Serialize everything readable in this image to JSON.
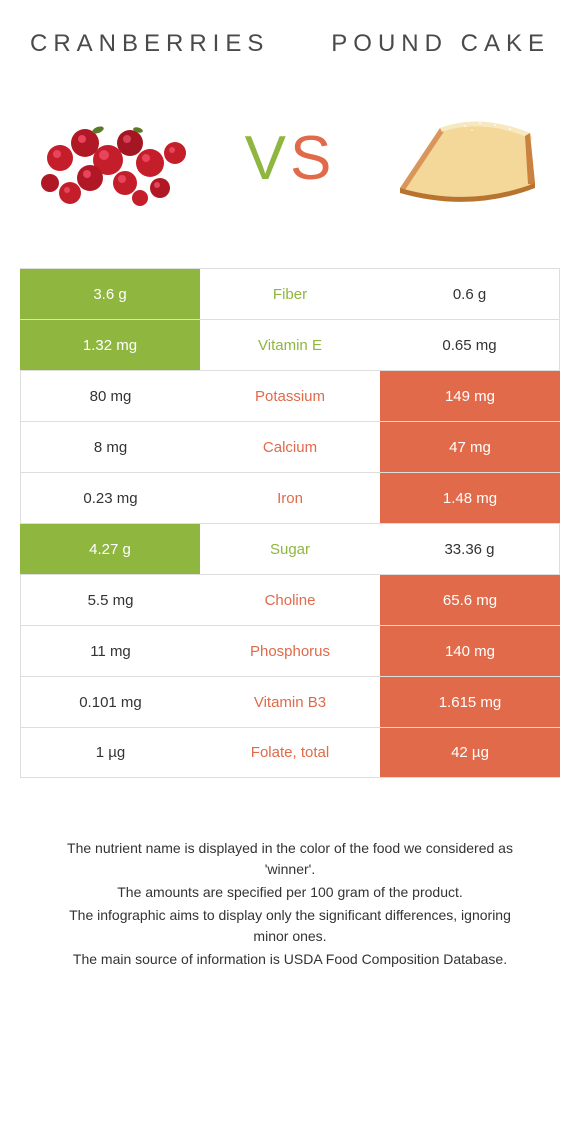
{
  "titles": {
    "left": "CRANBERRIES",
    "right": "POUND CAKE"
  },
  "vs": {
    "v": "V",
    "s": "S"
  },
  "colors": {
    "green": "#8fb63f",
    "orange": "#e06a4a",
    "text": "#333333",
    "border": "#dddddd",
    "bg": "#ffffff"
  },
  "images": {
    "cranberry_fill": "#c41e2a",
    "cranberry_highlight": "#e8455c",
    "cake_crust": "#d9955a",
    "cake_inside": "#f3d89a",
    "cake_top": "#f7e9bf"
  },
  "rows": [
    {
      "left": "3.6 g",
      "mid": "Fiber",
      "right": "0.6 g",
      "winner": "left"
    },
    {
      "left": "1.32 mg",
      "mid": "Vitamin E",
      "right": "0.65 mg",
      "winner": "left"
    },
    {
      "left": "80 mg",
      "mid": "Potassium",
      "right": "149 mg",
      "winner": "right"
    },
    {
      "left": "8 mg",
      "mid": "Calcium",
      "right": "47 mg",
      "winner": "right"
    },
    {
      "left": "0.23 mg",
      "mid": "Iron",
      "right": "1.48 mg",
      "winner": "right"
    },
    {
      "left": "4.27 g",
      "mid": "Sugar",
      "right": "33.36 g",
      "winner": "left"
    },
    {
      "left": "5.5 mg",
      "mid": "Choline",
      "right": "65.6 mg",
      "winner": "right"
    },
    {
      "left": "11 mg",
      "mid": "Phosphorus",
      "right": "140 mg",
      "winner": "right"
    },
    {
      "left": "0.101 mg",
      "mid": "Vitamin B3",
      "right": "1.615 mg",
      "winner": "right"
    },
    {
      "left": "1 µg",
      "mid": "Folate, total",
      "right": "42 µg",
      "winner": "right"
    }
  ],
  "footer": [
    "The nutrient name is displayed in the color of the food we considered as 'winner'.",
    "The amounts are specified per 100 gram of the product.",
    "The infographic aims to display only the significant differences, ignoring minor ones.",
    "The main source of information is USDA Food Composition Database."
  ]
}
